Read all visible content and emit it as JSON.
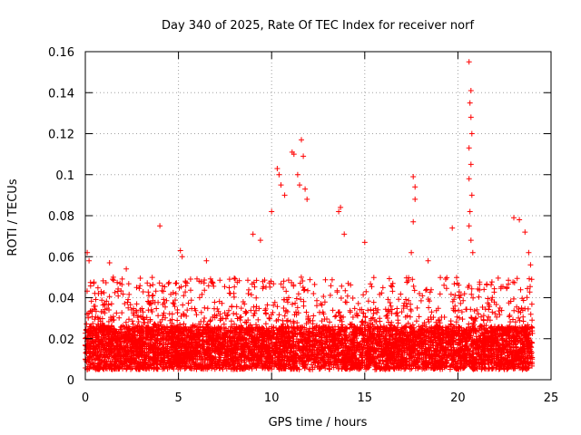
{
  "chart_data": {
    "type": "scatter",
    "title": "Day 340 of 2025, Rate Of TEC Index for receiver norf",
    "xlabel": "GPS time / hours",
    "ylabel": "ROTI / TECUs",
    "xlim": [
      0,
      25
    ],
    "ylim": [
      0,
      0.16
    ],
    "x_ticks": [
      0,
      5,
      10,
      15,
      20,
      25
    ],
    "x_tick_labels": [
      "0",
      "5",
      "10",
      "15",
      "20",
      "25"
    ],
    "y_ticks": [
      0,
      0.02,
      0.04,
      0.06,
      0.08,
      0.1,
      0.12,
      0.14,
      0.16
    ],
    "y_tick_labels": [
      "0",
      "0.02",
      "0.04",
      "0.06",
      "0.08",
      "0.1",
      "0.12",
      "0.14",
      "0.16"
    ],
    "grid": true,
    "marker": "+",
    "series": [
      {
        "name": "ROTI",
        "color": "#ff0000",
        "x_range": [
          0,
          24
        ],
        "typical_range": [
          0.005,
          0.035
        ],
        "notable_points": [
          {
            "x": 0.1,
            "y": 0.062
          },
          {
            "x": 0.2,
            "y": 0.058
          },
          {
            "x": 1.3,
            "y": 0.057
          },
          {
            "x": 2.2,
            "y": 0.054
          },
          {
            "x": 4.0,
            "y": 0.075
          },
          {
            "x": 5.1,
            "y": 0.063
          },
          {
            "x": 5.2,
            "y": 0.06
          },
          {
            "x": 6.5,
            "y": 0.058
          },
          {
            "x": 9.0,
            "y": 0.071
          },
          {
            "x": 9.4,
            "y": 0.068
          },
          {
            "x": 10.0,
            "y": 0.082
          },
          {
            "x": 10.3,
            "y": 0.103
          },
          {
            "x": 10.4,
            "y": 0.1
          },
          {
            "x": 10.5,
            "y": 0.095
          },
          {
            "x": 10.7,
            "y": 0.09
          },
          {
            "x": 11.1,
            "y": 0.111
          },
          {
            "x": 11.2,
            "y": 0.11
          },
          {
            "x": 11.4,
            "y": 0.1
          },
          {
            "x": 11.5,
            "y": 0.095
          },
          {
            "x": 11.6,
            "y": 0.117
          },
          {
            "x": 11.7,
            "y": 0.109
          },
          {
            "x": 11.8,
            "y": 0.093
          },
          {
            "x": 11.9,
            "y": 0.088
          },
          {
            "x": 13.6,
            "y": 0.082
          },
          {
            "x": 13.7,
            "y": 0.084
          },
          {
            "x": 13.9,
            "y": 0.071
          },
          {
            "x": 15.0,
            "y": 0.067
          },
          {
            "x": 17.6,
            "y": 0.099
          },
          {
            "x": 17.7,
            "y": 0.094
          },
          {
            "x": 17.7,
            "y": 0.088
          },
          {
            "x": 17.6,
            "y": 0.077
          },
          {
            "x": 17.5,
            "y": 0.062
          },
          {
            "x": 18.4,
            "y": 0.058
          },
          {
            "x": 19.7,
            "y": 0.074
          },
          {
            "x": 20.6,
            "y": 0.155
          },
          {
            "x": 20.7,
            "y": 0.141
          },
          {
            "x": 20.65,
            "y": 0.135
          },
          {
            "x": 20.7,
            "y": 0.128
          },
          {
            "x": 20.75,
            "y": 0.12
          },
          {
            "x": 20.6,
            "y": 0.113
          },
          {
            "x": 20.7,
            "y": 0.105
          },
          {
            "x": 20.6,
            "y": 0.098
          },
          {
            "x": 20.75,
            "y": 0.09
          },
          {
            "x": 20.65,
            "y": 0.082
          },
          {
            "x": 20.6,
            "y": 0.075
          },
          {
            "x": 20.7,
            "y": 0.068
          },
          {
            "x": 20.8,
            "y": 0.062
          },
          {
            "x": 23.0,
            "y": 0.079
          },
          {
            "x": 23.3,
            "y": 0.078
          },
          {
            "x": 23.6,
            "y": 0.072
          },
          {
            "x": 23.8,
            "y": 0.062
          },
          {
            "x": 23.9,
            "y": 0.056
          }
        ]
      }
    ]
  }
}
